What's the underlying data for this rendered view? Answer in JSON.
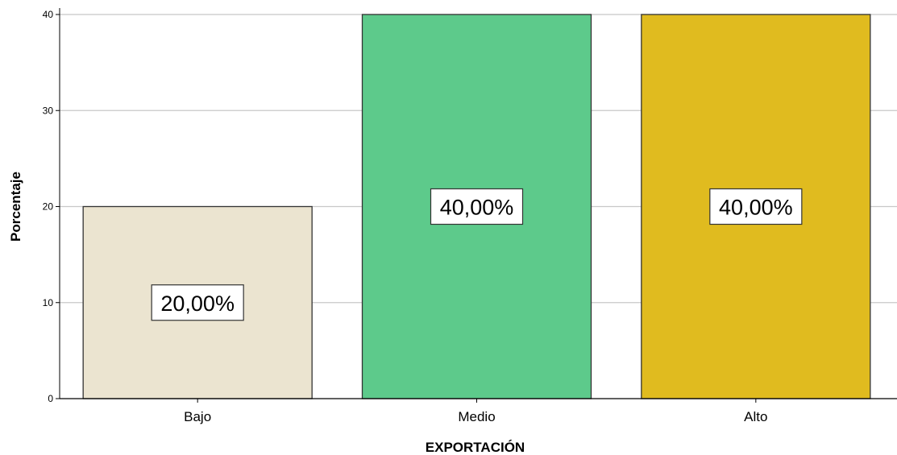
{
  "chart_data": {
    "type": "bar",
    "title": "",
    "xlabel": "EXPORTACIÓN",
    "ylabel": "Porcentaje",
    "categories": [
      "Bajo",
      "Medio",
      "Alto"
    ],
    "values": [
      20,
      40,
      40
    ],
    "data_labels": [
      "20,00%",
      "40,00%",
      "40,00%"
    ],
    "colors": [
      "#ebe4d0",
      "#5dca8b",
      "#e0bb1f"
    ],
    "ylim": [
      0,
      40
    ],
    "yticks": [
      0,
      10,
      20,
      30,
      40
    ],
    "grid": true,
    "legend": "none"
  }
}
